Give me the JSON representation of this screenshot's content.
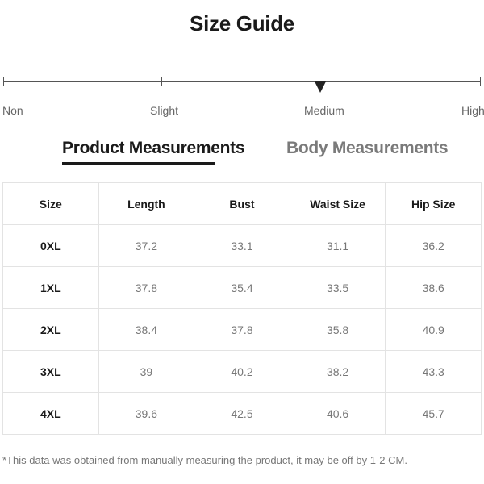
{
  "title": "Size Guide",
  "stretch_scale": {
    "labels": [
      "Non",
      "Slight",
      "Medium",
      "High"
    ],
    "selected": "Medium"
  },
  "tabs": [
    {
      "label": "Product Measurements",
      "active": true
    },
    {
      "label": "Body Measurements",
      "active": false
    }
  ],
  "table": {
    "headers": [
      "Size",
      "Length",
      "Bust",
      "Waist Size",
      "Hip Size"
    ],
    "rows": [
      [
        "0XL",
        "37.2",
        "33.1",
        "31.1",
        "36.2"
      ],
      [
        "1XL",
        "37.8",
        "35.4",
        "33.5",
        "38.6"
      ],
      [
        "2XL",
        "38.4",
        "37.8",
        "35.8",
        "40.9"
      ],
      [
        "3XL",
        "39",
        "40.2",
        "38.2",
        "43.3"
      ],
      [
        "4XL",
        "39.6",
        "42.5",
        "40.6",
        "45.7"
      ]
    ]
  },
  "footnote": "*This data was obtained from manually measuring the product, it may be off by 1-2 CM."
}
